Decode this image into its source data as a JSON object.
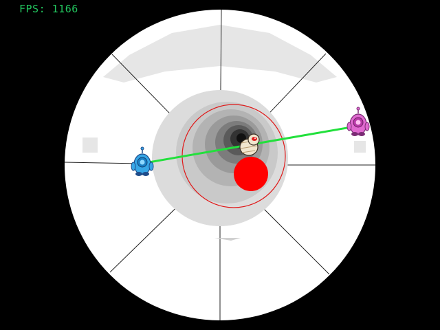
{
  "hud": {
    "fps_label": "FPS: 1166"
  },
  "colors": {
    "background": "#000000",
    "arena": "#ffffff",
    "arena_shade": "#e9e9e9",
    "fps_text": "#22c55e",
    "laser": "#22e03c",
    "ring": "#e01818",
    "ball": "#ff0000",
    "player_blue": "#37a6e6",
    "player_pink": "#e06ad0"
  },
  "icons": {
    "player_left": "blue-robot-icon",
    "player_right": "pink-robot-icon",
    "center_enemy": "mummy-icon",
    "ball": "red-ball"
  }
}
